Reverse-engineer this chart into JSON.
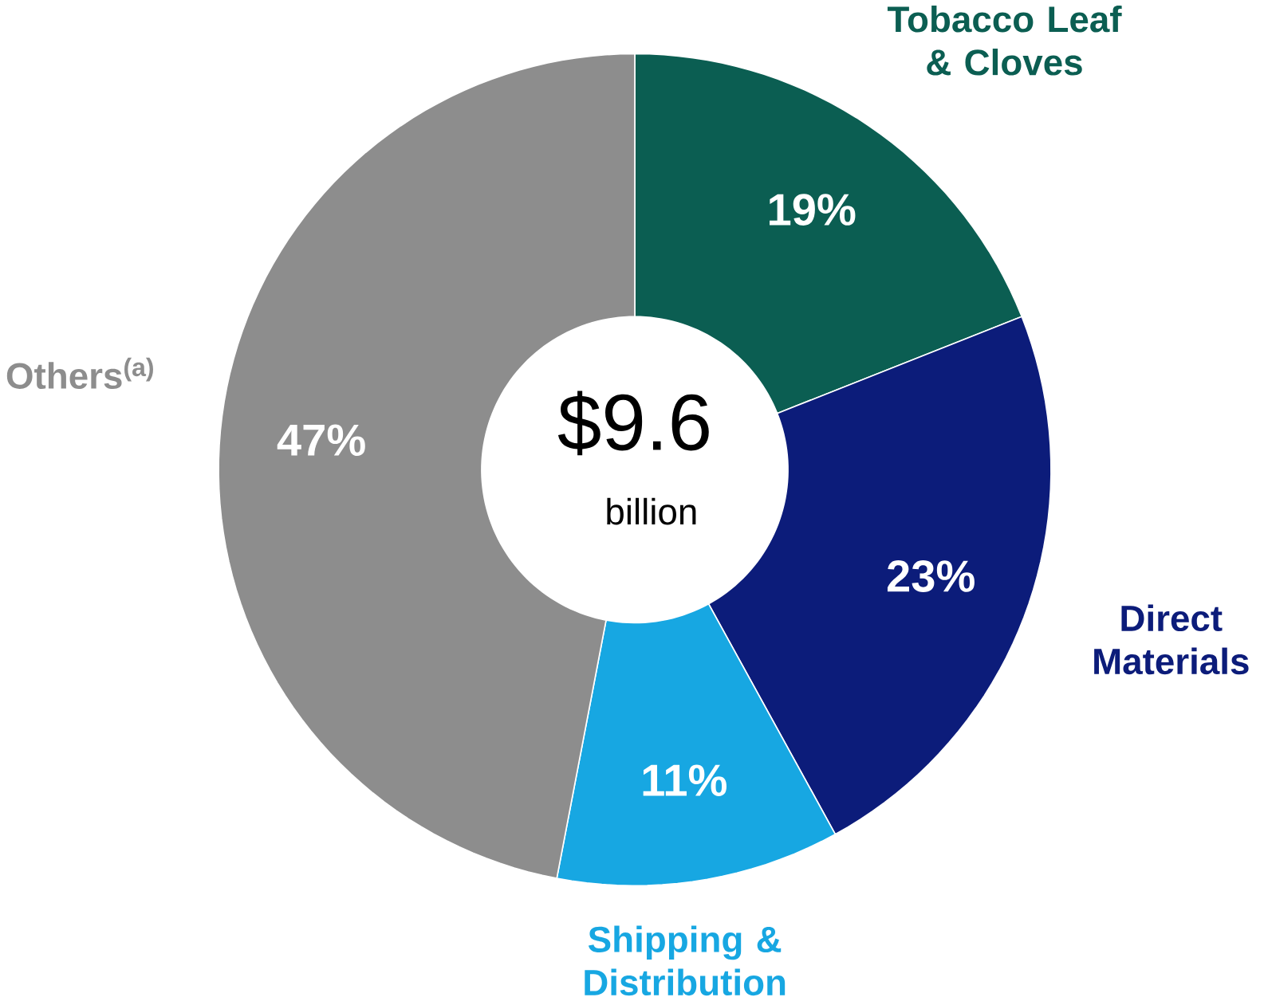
{
  "chart_data": {
    "type": "donut",
    "categories": [
      "Tobacco Leaf & Cloves",
      "Direct Materials",
      "Shipping & Distribution",
      "Others$^{(a)}$"
    ],
    "values": [
      19,
      23,
      11,
      47
    ],
    "value_labels": [
      "19%",
      "23%",
      "11%",
      "47%"
    ],
    "colors": [
      "#0b5e52",
      "#0c1c7a",
      "#17a7e2",
      "#8d8d8d"
    ],
    "annotations": [
      "$9.6",
      "billion"
    ]
  }
}
